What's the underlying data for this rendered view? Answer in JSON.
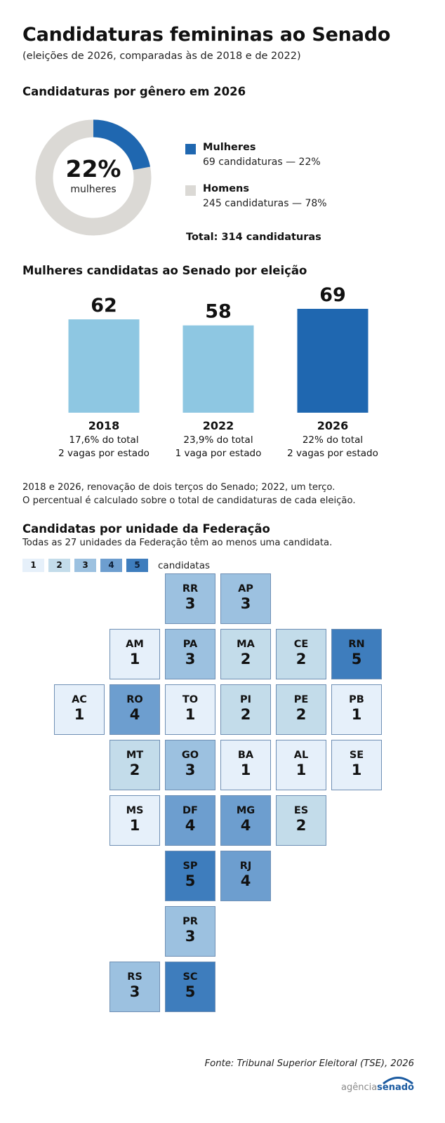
{
  "header": {
    "title": "Candidaturas femininas ao Senado",
    "subtitle": "(eleições de 2026, comparadas às de 2018 e de 2022)"
  },
  "colors": {
    "women": "#1f67b0",
    "men": "#dbd9d5",
    "bar_past": "#8ec7e2",
    "bar_current": "#1f67b0",
    "scale": [
      "#e6f0fa",
      "#c3dcea",
      "#9cc1e0",
      "#6d9ecf",
      "#3e7dbd"
    ]
  },
  "gender": {
    "section_title": "Candidaturas por gênero em 2026",
    "center_value": "22%",
    "center_label": "mulheres",
    "women": {
      "label": "Mulheres",
      "detail": "69 candidaturas — 22%",
      "value": 69
    },
    "men": {
      "label": "Homens",
      "detail": "245 candidaturas — 78%",
      "value": 245
    },
    "total": "Total: 314 candidaturas"
  },
  "chart_data": [
    {
      "type": "pie",
      "title": "Candidaturas por gênero em 2026",
      "labels": [
        "Mulheres",
        "Homens"
      ],
      "values": [
        69,
        245
      ],
      "percent": [
        22,
        78
      ]
    },
    {
      "type": "bar",
      "title": "Mulheres candidatas ao Senado por eleição",
      "categories": [
        "2018",
        "2022",
        "2026"
      ],
      "values": [
        62,
        58,
        69
      ],
      "details": [
        "17,6% do total",
        "23,9% do total",
        "22% do total"
      ],
      "seats": [
        "2 vagas por estado",
        "1 vaga por estado",
        "2 vagas por estado"
      ],
      "ylim": [
        0,
        69
      ]
    },
    {
      "type": "heatmap",
      "title": "Candidatas por unidade da Federação",
      "cells": [
        {
          "uf": "RR",
          "value": 3,
          "col": 2,
          "row": 0
        },
        {
          "uf": "AP",
          "value": 3,
          "col": 3,
          "row": 0
        },
        {
          "uf": "AM",
          "value": 1,
          "col": 1,
          "row": 1
        },
        {
          "uf": "PA",
          "value": 3,
          "col": 2,
          "row": 1
        },
        {
          "uf": "MA",
          "value": 2,
          "col": 3,
          "row": 1
        },
        {
          "uf": "CE",
          "value": 2,
          "col": 4,
          "row": 1
        },
        {
          "uf": "RN",
          "value": 5,
          "col": 5,
          "row": 1
        },
        {
          "uf": "AC",
          "value": 1,
          "col": 0,
          "row": 2
        },
        {
          "uf": "RO",
          "value": 4,
          "col": 1,
          "row": 2
        },
        {
          "uf": "TO",
          "value": 1,
          "col": 2,
          "row": 2
        },
        {
          "uf": "PI",
          "value": 2,
          "col": 3,
          "row": 2
        },
        {
          "uf": "PE",
          "value": 2,
          "col": 4,
          "row": 2
        },
        {
          "uf": "PB",
          "value": 1,
          "col": 5,
          "row": 2
        },
        {
          "uf": "MT",
          "value": 2,
          "col": 1,
          "row": 3
        },
        {
          "uf": "GO",
          "value": 3,
          "col": 2,
          "row": 3
        },
        {
          "uf": "BA",
          "value": 1,
          "col": 3,
          "row": 3
        },
        {
          "uf": "AL",
          "value": 1,
          "col": 4,
          "row": 3
        },
        {
          "uf": "SE",
          "value": 1,
          "col": 5,
          "row": 3
        },
        {
          "uf": "MS",
          "value": 1,
          "col": 1,
          "row": 4
        },
        {
          "uf": "DF",
          "value": 4,
          "col": 2,
          "row": 4
        },
        {
          "uf": "MG",
          "value": 4,
          "col": 3,
          "row": 4
        },
        {
          "uf": "ES",
          "value": 2,
          "col": 4,
          "row": 4
        },
        {
          "uf": "SP",
          "value": 5,
          "col": 2,
          "row": 5
        },
        {
          "uf": "RJ",
          "value": 4,
          "col": 3,
          "row": 5
        },
        {
          "uf": "PR",
          "value": 3,
          "col": 2,
          "row": 6
        },
        {
          "uf": "RS",
          "value": 3,
          "col": 1,
          "row": 7
        },
        {
          "uf": "SC",
          "value": 5,
          "col": 2,
          "row": 7
        }
      ]
    }
  ],
  "bars_section": {
    "section_title": "Mulheres candidatas ao Senado por eleição",
    "notes": [
      "2018 e 2026, renovação de dois terços do Senado; 2022, um terço.",
      "O percentual é calculado sobre o total de candidaturas de cada eleição."
    ]
  },
  "uf_section": {
    "section_title": "Candidatas por unidade da Federação",
    "subtitle": "Todas as 27 unidades da Federação têm ao menos uma candidata.",
    "scale_values": [
      "1",
      "2",
      "3",
      "4",
      "5"
    ],
    "scale_label": "candidatas"
  },
  "footer": {
    "source": "Fonte: Tribunal Superior Eleitoral (TSE), 2026",
    "logo_part1": "agência",
    "logo_part2": "senado"
  }
}
